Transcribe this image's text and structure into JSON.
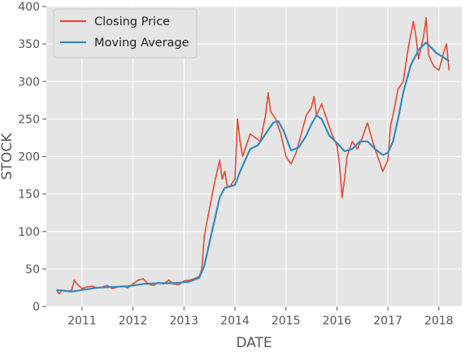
{
  "chart_data": {
    "type": "line",
    "xlabel": "DATE",
    "ylabel": "STOCK",
    "xlim": [
      2010.3,
      2018.45
    ],
    "ylim": [
      0,
      400
    ],
    "x_ticks": [
      2011,
      2012,
      2013,
      2014,
      2015,
      2016,
      2017,
      2018
    ],
    "x_tick_labels": [
      "2011",
      "2012",
      "2013",
      "2014",
      "2015",
      "2016",
      "2017",
      "2018"
    ],
    "y_ticks": [
      0,
      50,
      100,
      150,
      200,
      250,
      300,
      350,
      400
    ],
    "y_tick_labels": [
      "0",
      "50",
      "100",
      "150",
      "200",
      "250",
      "300",
      "350",
      "400"
    ],
    "grid": true,
    "legend_position": "top-left",
    "series": [
      {
        "name": "Closing Price",
        "color": "#e24a33",
        "x": [
          2010.5,
          2010.55,
          2010.6,
          2010.7,
          2010.8,
          2010.85,
          2010.9,
          2011.0,
          2011.1,
          2011.2,
          2011.3,
          2011.4,
          2011.5,
          2011.6,
          2011.7,
          2011.8,
          2011.9,
          2012.0,
          2012.1,
          2012.2,
          2012.3,
          2012.4,
          2012.5,
          2012.6,
          2012.7,
          2012.8,
          2012.9,
          2013.0,
          2013.1,
          2013.2,
          2013.3,
          2013.35,
          2013.4,
          2013.5,
          2013.6,
          2013.7,
          2013.75,
          2013.8,
          2013.85,
          2013.9,
          2014.0,
          2014.05,
          2014.1,
          2014.15,
          2014.2,
          2014.3,
          2014.4,
          2014.5,
          2014.6,
          2014.65,
          2014.7,
          2014.8,
          2014.9,
          2015.0,
          2015.1,
          2015.2,
          2015.3,
          2015.4,
          2015.5,
          2015.55,
          2015.6,
          2015.7,
          2015.8,
          2015.9,
          2016.0,
          2016.05,
          2016.1,
          2016.15,
          2016.2,
          2016.3,
          2016.4,
          2016.5,
          2016.6,
          2016.7,
          2016.8,
          2016.9,
          2017.0,
          2017.05,
          2017.1,
          2017.2,
          2017.3,
          2017.4,
          2017.5,
          2017.55,
          2017.6,
          2017.7,
          2017.75,
          2017.8,
          2017.9,
          2018.0,
          2018.1,
          2018.15,
          2018.2
        ],
        "y": [
          22,
          17,
          21,
          20,
          22,
          35,
          30,
          24,
          26,
          27,
          25,
          26,
          28,
          24,
          26,
          27,
          25,
          30,
          35,
          37,
          30,
          28,
          32,
          30,
          35,
          30,
          29,
          34,
          35,
          37,
          40,
          50,
          95,
          130,
          165,
          195,
          170,
          180,
          160,
          160,
          170,
          250,
          220,
          200,
          210,
          230,
          225,
          220,
          255,
          285,
          260,
          250,
          230,
          200,
          190,
          205,
          230,
          255,
          265,
          280,
          255,
          270,
          250,
          230,
          215,
          190,
          145,
          170,
          200,
          220,
          210,
          225,
          245,
          220,
          200,
          180,
          195,
          240,
          255,
          290,
          300,
          345,
          380,
          360,
          330,
          360,
          385,
          335,
          320,
          315,
          340,
          350,
          315
        ]
      },
      {
        "name": "Moving Average",
        "color": "#348abd",
        "x": [
          2010.5,
          2010.8,
          2011.0,
          2011.3,
          2011.6,
          2011.9,
          2012.2,
          2012.5,
          2012.8,
          2013.1,
          2013.3,
          2013.4,
          2013.5,
          2013.6,
          2013.7,
          2013.8,
          2013.9,
          2014.0,
          2014.1,
          2014.2,
          2014.3,
          2014.45,
          2014.6,
          2014.75,
          2014.85,
          2014.95,
          2015.1,
          2015.25,
          2015.4,
          2015.5,
          2015.6,
          2015.7,
          2015.85,
          2016.0,
          2016.15,
          2016.3,
          2016.45,
          2016.6,
          2016.75,
          2016.9,
          2017.0,
          2017.1,
          2017.2,
          2017.3,
          2017.45,
          2017.6,
          2017.75,
          2017.85,
          2017.95,
          2018.05,
          2018.2
        ],
        "y": [
          22,
          20,
          22,
          25,
          26,
          27,
          30,
          31,
          31,
          33,
          38,
          55,
          85,
          115,
          145,
          158,
          160,
          162,
          180,
          195,
          210,
          215,
          230,
          245,
          247,
          235,
          208,
          212,
          228,
          243,
          255,
          250,
          228,
          218,
          207,
          210,
          220,
          220,
          210,
          202,
          205,
          220,
          250,
          285,
          322,
          342,
          352,
          345,
          338,
          334,
          327
        ]
      }
    ]
  }
}
